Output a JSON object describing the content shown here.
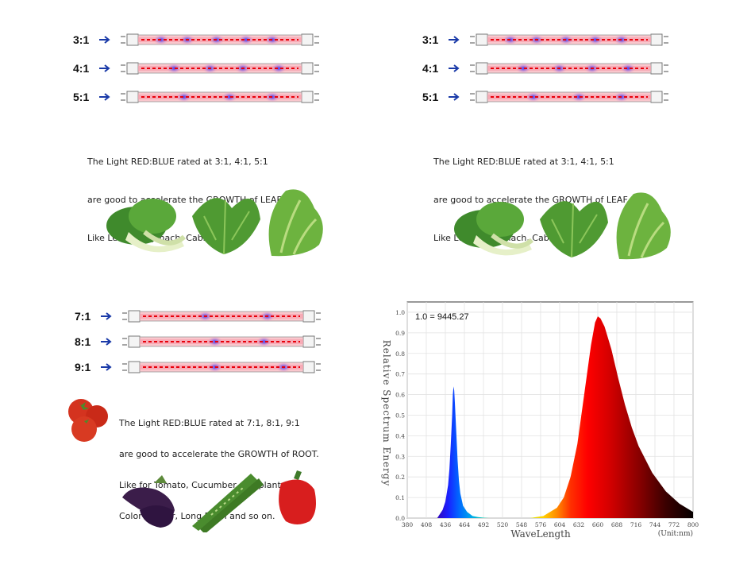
{
  "panels": [
    {
      "ratios": [
        "3:1",
        "4:1",
        "5:1"
      ],
      "text": [
        "The Light RED:BLUE rated at 3:1, 4:1, 5:1",
        "are good to accelerate the GROWTH of LEAF.",
        "Like Lettuce, Spinach, Cabbage"
      ]
    },
    {
      "ratios": [
        "3:1",
        "4:1",
        "5:1"
      ],
      "text": [
        "The Light RED:BLUE rated at 3:1, 4:1, 5:1",
        "are good to accelerate the GROWTH of LEAF.",
        "Like Lettuce, Spinach, Cabbage"
      ]
    },
    {
      "ratios": [
        "7:1",
        "8:1",
        "9:1"
      ],
      "text": [
        "The Light RED:BLUE rated at 7:1, 8:1, 9:1",
        "are good to accelerate the GROWTH of ROOT.",
        "Like for Tomato, Cucumber, Eggplant,",
        "Color Pepper, Long Bean and so on."
      ]
    }
  ],
  "icons": {
    "arrow": "arrow-right-icon",
    "tube": "led-tube-icon",
    "veg_leaf": [
      "bok-choy-icon",
      "spinach-icon",
      "lettuce-icon"
    ],
    "veg_root": [
      "tomato-icon",
      "eggplant-icon",
      "cucumber-icon",
      "red-pepper-icon"
    ]
  },
  "colors": {
    "red_led": "#e8000a",
    "blue_led": "#3030ff",
    "arrow": "#1a3aa8"
  },
  "chart_data": {
    "type": "area",
    "annotation": "1.0 = 9445.27",
    "ylabel": "Relative Spectrum Energy",
    "xlabel": "WaveLength",
    "unit_label": "(Unit:nm)",
    "x_ticks": [
      "380",
      "408",
      "436",
      "464",
      "492",
      "520",
      "548",
      "576",
      "604",
      "632",
      "660",
      "688",
      "716",
      "744",
      "772",
      "800"
    ],
    "y_ticks": [
      "0.0",
      "0.1",
      "0.2",
      "0.3",
      "0.4",
      "0.5",
      "0.6",
      "0.7",
      "0.8",
      "0.9",
      "1.0"
    ],
    "xlim": [
      380,
      800
    ],
    "ylim": [
      0,
      1.05
    ],
    "grid": true,
    "series": [
      {
        "x": [
          424,
          432,
          436,
          440,
          442,
          444,
          446,
          447,
          448,
          449,
          450,
          452,
          454,
          456,
          458,
          462,
          468,
          476,
          484,
          492,
          500
        ],
        "y": [
          0.0,
          0.04,
          0.08,
          0.16,
          0.24,
          0.36,
          0.5,
          0.6,
          0.64,
          0.62,
          0.56,
          0.42,
          0.28,
          0.18,
          0.12,
          0.06,
          0.03,
          0.01,
          0.005,
          0.002,
          0.0
        ]
      },
      {
        "x": [
          560,
          580,
          600,
          610,
          620,
          630,
          640,
          650,
          656,
          660,
          664,
          670,
          680,
          690,
          700,
          710,
          720,
          740,
          760,
          780,
          800
        ],
        "y": [
          0.0,
          0.01,
          0.05,
          0.1,
          0.2,
          0.36,
          0.6,
          0.84,
          0.95,
          0.98,
          0.97,
          0.93,
          0.82,
          0.68,
          0.55,
          0.44,
          0.35,
          0.22,
          0.13,
          0.07,
          0.03
        ]
      }
    ]
  }
}
